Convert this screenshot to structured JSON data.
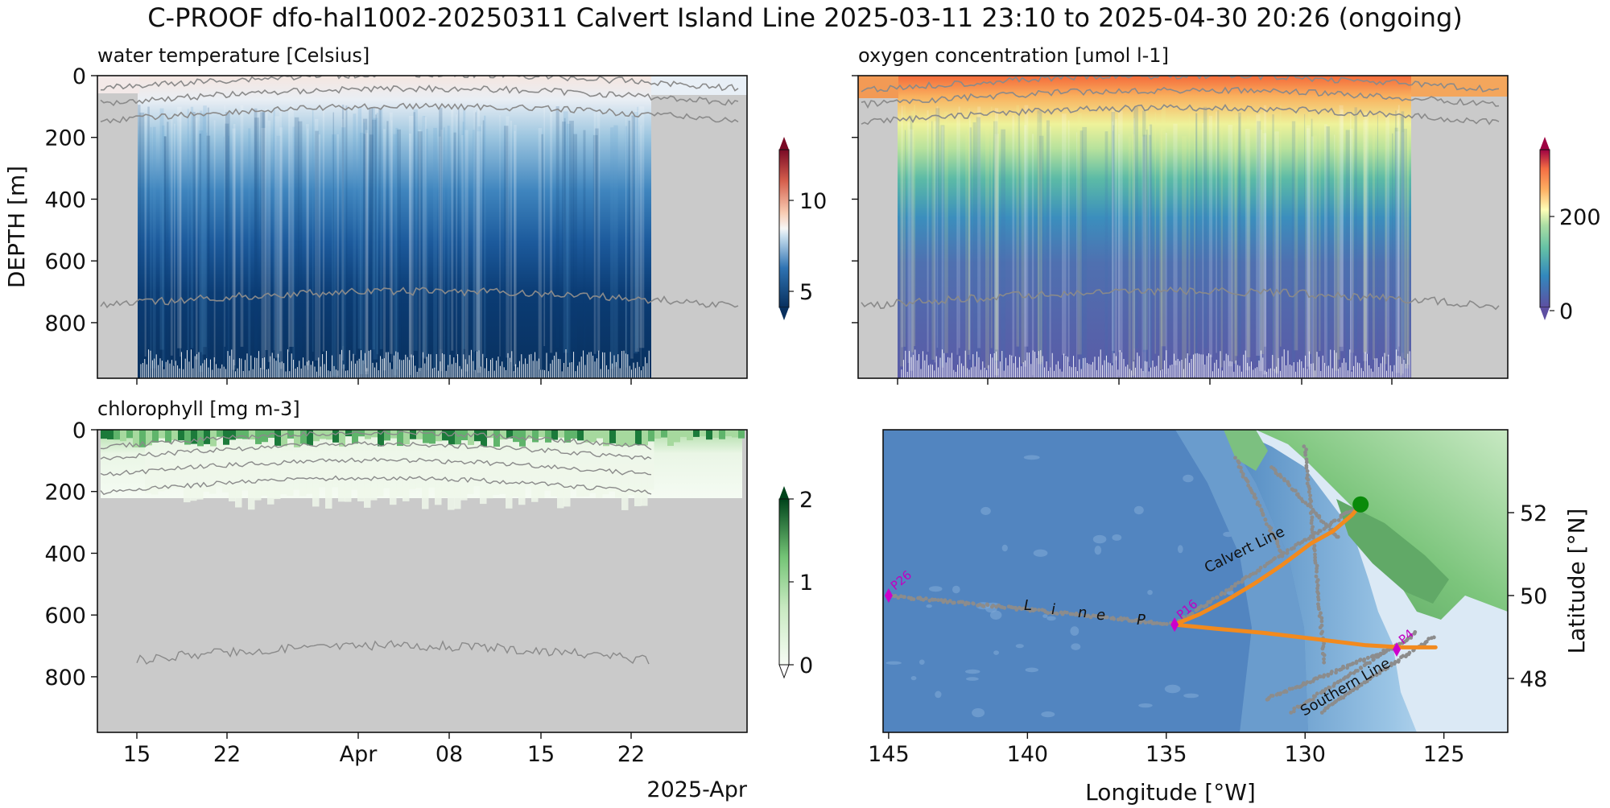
{
  "figure": {
    "suptitle": "C-PROOF dfo-hal1002-20250311   Calvert Island Line   2025-03-11 23:10 to 2025-04-30 20:26 (ongoing)",
    "depth_label": "DEPTH [m]",
    "time_offset_label": "2025-Apr",
    "colors": {
      "nodata": "#cacaca",
      "track": "#f28a1e",
      "past_tracks": "#8c8c8c",
      "stations": "#cc00cc",
      "glider": "#0a8a0a",
      "isopycnal": "#8a8a8a"
    }
  },
  "chart_data": [
    {
      "type": "heatmap",
      "title": "water temperature [Celsius]",
      "ylabel": "DEPTH [m]",
      "ylim": [
        980,
        0
      ],
      "y_ticks": [
        "0",
        "200",
        "400",
        "600",
        "800"
      ],
      "x_ticks": [
        "15",
        "22",
        "Apr",
        "08",
        "15",
        "22"
      ],
      "x_offset_label": "2025-Apr",
      "colormap": "RdBu_r",
      "colorbar_range": [
        4,
        13.5
      ],
      "colorbar_ticks": [
        "5",
        "10"
      ],
      "data_coverage": [
        "2025-03-15",
        "2025-04-23"
      ],
      "surface_c": 8.5,
      "mid_c": 6.2,
      "deep_c": 4.3
    },
    {
      "type": "heatmap",
      "title": "oxygen concentration [umol l-1]",
      "ylim": [
        980,
        0
      ],
      "colormap": "Spectral_r",
      "colorbar_range": [
        -10,
        340
      ],
      "colorbar_ticks": [
        "0",
        "200"
      ],
      "data_coverage": [
        "2025-03-15",
        "2025-04-23"
      ],
      "surface_umol_l": 300,
      "thermocline_umol_l": 200,
      "deep_umol_l": 40
    },
    {
      "type": "heatmap",
      "title": "chlorophyll [mg m-3]",
      "ylim": [
        980,
        0
      ],
      "colormap": "Greens",
      "colorbar_range": [
        0,
        2
      ],
      "colorbar_ticks": [
        "2",
        "1",
        "0"
      ],
      "data_depth_m": 240,
      "surface_mg_m3": 1.2
    },
    {
      "type": "map",
      "xlabel": "Longitude [°W]",
      "ylabel": "Latitude [°N]",
      "xlim": [
        145.2,
        122.7
      ],
      "ylim": [
        46.7,
        54
      ],
      "x_ticks": [
        "145",
        "140",
        "135",
        "130",
        "125"
      ],
      "y_ticks": [
        "52",
        "50",
        "48"
      ],
      "stations": [
        {
          "name": "P26",
          "lon": 145.0,
          "lat": 50.0
        },
        {
          "name": "P16",
          "lon": 134.7,
          "lat": 49.3
        },
        {
          "name": "P4",
          "lon": 126.7,
          "lat": 48.7
        }
      ],
      "line_labels": [
        {
          "text": "Calvert Line"
        },
        {
          "text": "Southern Line"
        }
      ],
      "line_p_letters": [
        "L",
        "i",
        "n",
        "e",
        "P"
      ],
      "glider_position": {
        "lon": 128.0,
        "lat": 52.2
      },
      "current_track": [
        [
          128.0,
          52.2
        ],
        [
          128.3,
          51.95
        ],
        [
          129.0,
          51.55
        ],
        [
          129.8,
          51.25
        ],
        [
          130.8,
          50.75
        ],
        [
          131.8,
          50.3
        ],
        [
          132.8,
          49.9
        ],
        [
          133.8,
          49.55
        ],
        [
          134.7,
          49.3
        ],
        [
          133.2,
          49.2
        ],
        [
          131.5,
          49.1
        ],
        [
          129.6,
          48.95
        ],
        [
          127.8,
          48.8
        ],
        [
          126.5,
          48.75
        ],
        [
          125.3,
          48.75
        ]
      ]
    }
  ]
}
